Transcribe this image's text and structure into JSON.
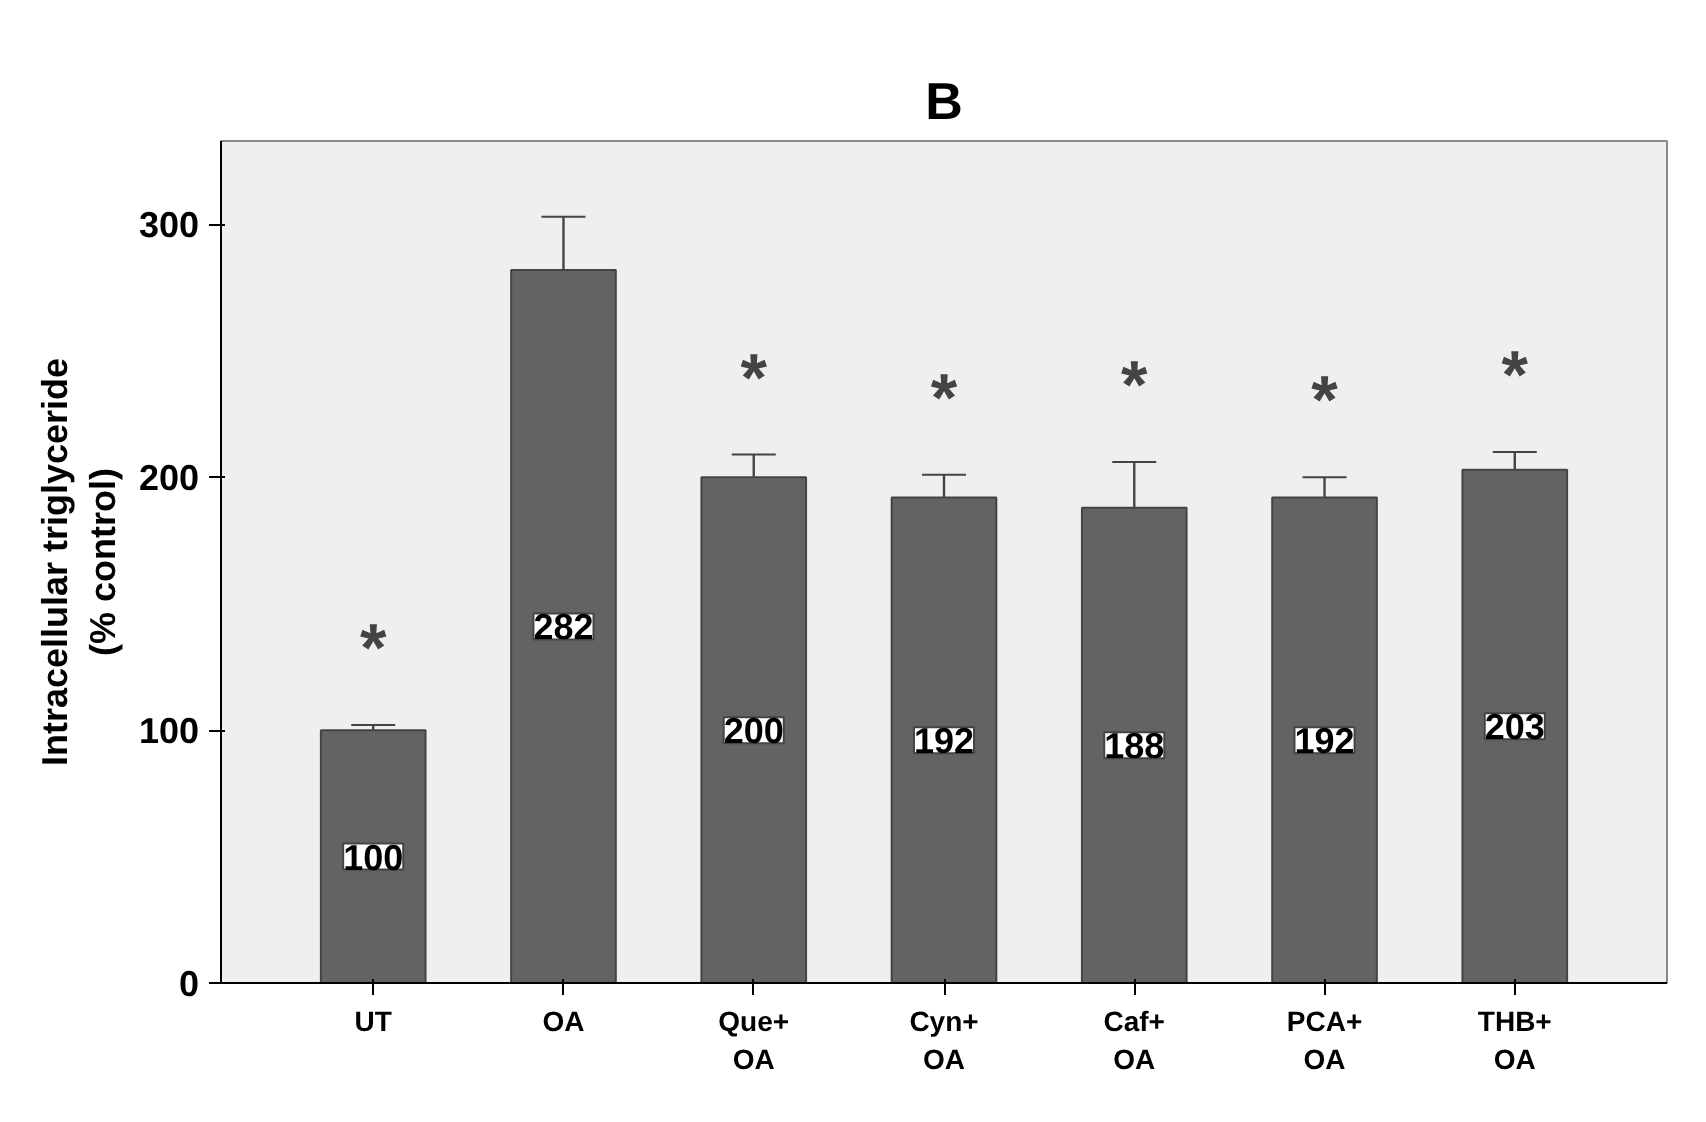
{
  "chart_data": {
    "type": "bar",
    "title": "B",
    "ylabel": "Intracellular triglyceride\n(% control)",
    "categories": [
      "UT",
      "OA",
      "Que+\nOA",
      "Cyn+\nOA",
      "Caf+\nOA",
      "PCA+\nOA",
      "THB+\nOA"
    ],
    "values": [
      100,
      282,
      200,
      192,
      188,
      192,
      203
    ],
    "errors": [
      2,
      21,
      9,
      9,
      18,
      8,
      7
    ],
    "color": "#636363",
    "ylim": [
      0,
      333
    ],
    "yticks": [
      0,
      100,
      200,
      300
    ],
    "grid": false,
    "data_labels": true,
    "annotations": [
      {
        "text": "*",
        "x": "UT",
        "y": 100
      },
      {
        "text": "*",
        "x": "Que+\nOA",
        "y": 200
      },
      {
        "text": "*",
        "x": "Cyn+\nOA",
        "y": 192
      },
      {
        "text": "*",
        "x": "Caf+\nOA",
        "y": 188
      },
      {
        "text": "*",
        "x": "PCA+\nOA",
        "y": 192
      },
      {
        "text": "*",
        "x": "THB+\nOA",
        "y": 203
      }
    ]
  }
}
